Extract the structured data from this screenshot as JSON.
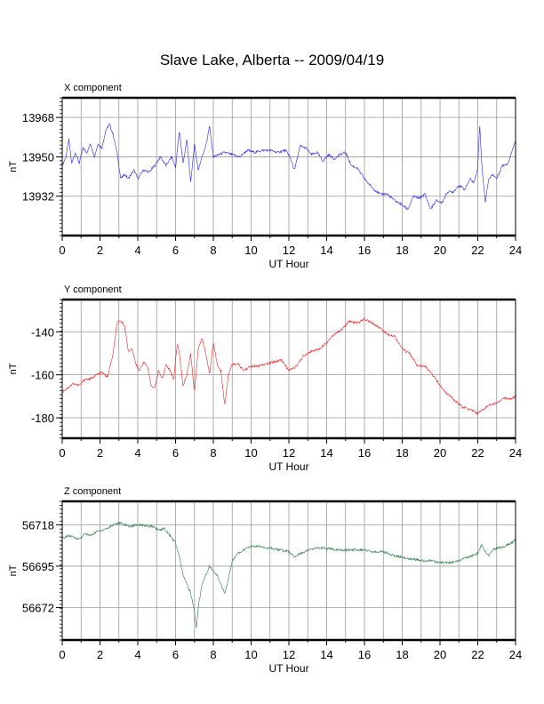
{
  "title": "Slave Lake, Alberta -- 2009/04/19",
  "chart_data": [
    {
      "type": "line",
      "title": "X component",
      "xlabel": "UT Hour",
      "ylabel": "nT",
      "xlim": [
        0,
        24
      ],
      "ylim": [
        13914,
        13977
      ],
      "xticks": [
        0,
        2,
        4,
        6,
        8,
        10,
        12,
        14,
        16,
        18,
        20,
        22,
        24
      ],
      "yticks": [
        13968,
        13950,
        13932
      ],
      "grid": true,
      "color": "#2222ee",
      "series": [
        {
          "x": [
            0,
            0.2,
            0.35,
            0.5,
            0.7,
            0.9,
            1.1,
            1.3,
            1.5,
            1.7,
            1.9,
            2.1,
            2.3,
            2.5,
            2.7,
            2.9,
            3.1,
            3.3,
            3.5,
            3.8,
            4.0,
            4.3,
            4.6,
            4.9,
            5.2,
            5.5,
            5.8,
            6.0,
            6.2,
            6.4,
            6.6,
            6.8,
            7.0,
            7.2,
            7.4,
            7.6,
            7.8,
            8.0,
            8.3,
            8.6,
            9.0,
            9.4,
            9.8,
            10.2,
            10.6,
            11.0,
            11.4,
            11.8,
            12.0,
            12.3,
            12.6,
            12.9,
            13.2,
            13.5,
            13.8,
            14.1,
            14.4,
            14.7,
            15.0,
            15.3,
            15.6,
            16.0,
            16.4,
            16.8,
            17.2,
            17.6,
            18.0,
            18.3,
            18.6,
            18.9,
            19.2,
            19.5,
            19.8,
            20.1,
            20.4,
            20.7,
            21.0,
            21.3,
            21.6,
            21.8,
            22.0,
            22.1,
            22.2,
            22.3,
            22.4,
            22.5,
            22.6,
            22.8,
            23.0,
            23.3,
            23.6,
            23.9,
            24.0
          ],
          "y": [
            13946,
            13950,
            13958,
            13947,
            13952,
            13947,
            13954,
            13952,
            13956,
            13950,
            13956,
            13954,
            13962,
            13965,
            13960,
            13952,
            13940,
            13942,
            13940,
            13944,
            13940,
            13944,
            13943,
            13946,
            13950,
            13946,
            13950,
            13945,
            13962,
            13947,
            13958,
            13938,
            13956,
            13944,
            13950,
            13955,
            13964,
            13950,
            13951,
            13952,
            13951,
            13950,
            13953,
            13952,
            13953,
            13953,
            13952,
            13953,
            13951,
            13944,
            13955,
            13954,
            13951,
            13952,
            13948,
            13951,
            13949,
            13951,
            13952,
            13946,
            13945,
            13940,
            13936,
            13933,
            13933,
            13930,
            13928,
            13926,
            13932,
            13931,
            13933,
            13926,
            13930,
            13929,
            13934,
            13934,
            13937,
            13935,
            13940,
            13938,
            13945,
            13965,
            13948,
            13938,
            13929,
            13936,
            13940,
            13942,
            13940,
            13946,
            13947,
            13955,
            13958
          ]
        }
      ]
    },
    {
      "type": "line",
      "title": "Y component",
      "xlabel": "UT Hour",
      "ylabel": "nT",
      "xlim": [
        0,
        24
      ],
      "ylim": [
        -189.5,
        -125
      ],
      "xticks": [
        0,
        2,
        4,
        6,
        8,
        10,
        12,
        14,
        16,
        18,
        20,
        22,
        24
      ],
      "yticks": [
        -140,
        -160,
        -180
      ],
      "grid": true,
      "color": "#ee2222",
      "series": [
        {
          "x": [
            0,
            0.3,
            0.6,
            0.9,
            1.2,
            1.5,
            1.8,
            2.1,
            2.4,
            2.7,
            2.9,
            3.1,
            3.3,
            3.5,
            3.7,
            3.9,
            4.1,
            4.3,
            4.5,
            4.7,
            4.9,
            5.1,
            5.3,
            5.5,
            5.7,
            5.9,
            6.1,
            6.2,
            6.4,
            6.6,
            6.8,
            7.0,
            7.2,
            7.4,
            7.6,
            7.8,
            8.0,
            8.2,
            8.4,
            8.6,
            8.8,
            9.0,
            9.3,
            9.6,
            10.0,
            10.4,
            10.8,
            11.2,
            11.6,
            12.0,
            12.4,
            12.8,
            13.2,
            13.6,
            14.0,
            14.4,
            14.8,
            15.2,
            15.6,
            16.0,
            16.4,
            16.8,
            17.2,
            17.6,
            18.0,
            18.4,
            18.8,
            19.2,
            19.6,
            20.0,
            20.4,
            20.8,
            21.2,
            21.6,
            22.0,
            22.3,
            22.6,
            23.0,
            23.4,
            23.8,
            24.0
          ],
          "y": [
            -168,
            -166,
            -164,
            -165,
            -162,
            -162,
            -160,
            -159,
            -161,
            -150,
            -136,
            -135,
            -137,
            -149,
            -148,
            -155,
            -158,
            -154,
            -156,
            -165,
            -166,
            -158,
            -162,
            -155,
            -158,
            -162,
            -145,
            -150,
            -165,
            -160,
            -150,
            -168,
            -148,
            -143,
            -150,
            -160,
            -145,
            -155,
            -158,
            -174,
            -160,
            -155,
            -155,
            -158,
            -156,
            -156,
            -155,
            -154,
            -153,
            -158,
            -156,
            -151,
            -149,
            -148,
            -145,
            -141,
            -139,
            -135,
            -136,
            -134,
            -136,
            -138,
            -141,
            -142,
            -148,
            -150,
            -156,
            -156,
            -160,
            -165,
            -169,
            -172,
            -175,
            -176,
            -178,
            -176,
            -174,
            -173,
            -171,
            -171,
            -170
          ]
        }
      ]
    },
    {
      "type": "line",
      "title": "Z component",
      "xlabel": "UT Hour",
      "ylabel": "nT",
      "xlim": [
        0,
        24
      ],
      "ylim": [
        56654,
        56731
      ],
      "xticks": [
        0,
        2,
        4,
        6,
        8,
        10,
        12,
        14,
        16,
        18,
        20,
        22,
        24
      ],
      "yticks": [
        56718,
        56695,
        56672
      ],
      "grid": true,
      "color": "#2d7a4a",
      "series": [
        {
          "x": [
            0,
            0.3,
            0.6,
            0.9,
            1.2,
            1.5,
            1.8,
            2.1,
            2.4,
            2.7,
            3.0,
            3.3,
            3.6,
            3.9,
            4.2,
            4.5,
            4.8,
            5.1,
            5.4,
            5.7,
            6.0,
            6.2,
            6.4,
            6.6,
            6.8,
            7.0,
            7.1,
            7.2,
            7.4,
            7.6,
            7.8,
            8.0,
            8.2,
            8.4,
            8.6,
            8.8,
            9.0,
            9.3,
            9.6,
            10.0,
            10.5,
            11.0,
            11.5,
            12.0,
            12.3,
            12.6,
            13.0,
            13.5,
            14.0,
            14.5,
            15.0,
            15.5,
            16.0,
            16.5,
            17.0,
            17.5,
            18.0,
            18.5,
            19.0,
            19.5,
            20.0,
            20.5,
            21.0,
            21.5,
            22.0,
            22.2,
            22.4,
            22.6,
            22.8,
            23.0,
            23.4,
            23.8,
            24.0
          ],
          "y": [
            56710,
            56712,
            56711,
            56710,
            56713,
            56712,
            56714,
            56715,
            56716,
            56718,
            56719,
            56718,
            56717,
            56718,
            56718,
            56717,
            56717,
            56715,
            56716,
            56712,
            56708,
            56700,
            56690,
            56685,
            56680,
            56670,
            56660,
            56672,
            56685,
            56690,
            56695,
            56692,
            56690,
            56685,
            56680,
            56688,
            56698,
            56702,
            56704,
            56706,
            56706,
            56705,
            56704,
            56703,
            56700,
            56702,
            56704,
            56705,
            56705,
            56704,
            56704,
            56704,
            56704,
            56703,
            56703,
            56701,
            56700,
            56699,
            56698,
            56698,
            56697,
            56697,
            56698,
            56700,
            56702,
            56707,
            56703,
            56701,
            56704,
            56705,
            56706,
            56708,
            56710
          ]
        }
      ]
    }
  ]
}
